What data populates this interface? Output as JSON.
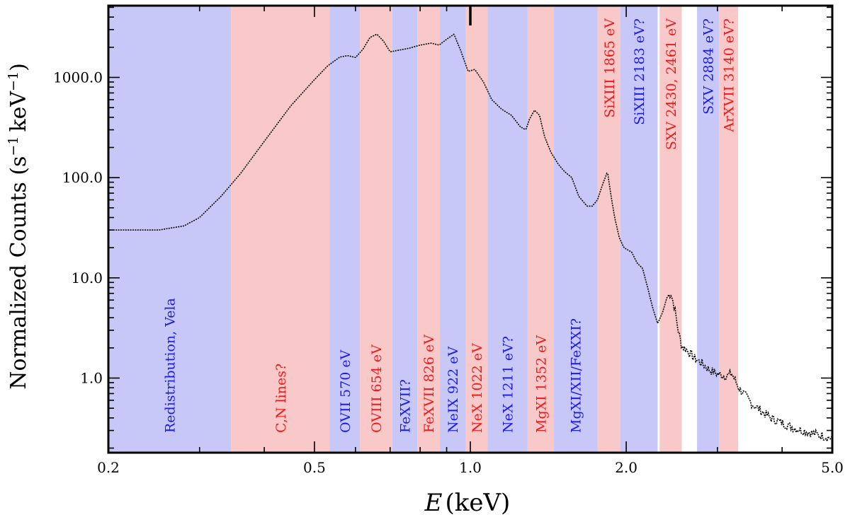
{
  "chart_data": {
    "type": "line",
    "title": "",
    "xlabel_var": "E",
    "xlabel_unit": "(keV)",
    "ylabel": "Normalized Counts (s",
    "ylabel_unit_mid": "keV",
    "ylabel_exp": "−1",
    "ylabel_close": ")",
    "xscale": "log",
    "yscale": "log",
    "xlim": [
      0.2,
      5.0
    ],
    "ylim": [
      0.18,
      5200
    ],
    "x_ticks": [
      {
        "value": 0.2,
        "label": "0.2"
      },
      {
        "value": 0.5,
        "label": "0.5"
      },
      {
        "value": 1.0,
        "label": "1.0"
      },
      {
        "value": 2.0,
        "label": "2.0"
      },
      {
        "value": 5.0,
        "label": "5.0"
      }
    ],
    "y_ticks": [
      {
        "value": 1,
        "label": "1.0"
      },
      {
        "value": 10,
        "label": "10.0"
      },
      {
        "value": 100,
        "label": "100.0"
      },
      {
        "value": 1000,
        "label": "1000.0"
      }
    ],
    "colors": {
      "blue_band": "#c8c8f8",
      "red_band": "#f9c8c8",
      "blue_text": "#1a1aee",
      "red_text": "#ee1a1a",
      "data": "#000000"
    },
    "bands": [
      {
        "x0": 0.2,
        "x1": 0.345,
        "color": "blue",
        "label": "Redistribution, Vela",
        "label_pos": "bottom"
      },
      {
        "x0": 0.345,
        "x1": 0.535,
        "color": "red",
        "label": "C,N lines?",
        "label_pos": "bottom"
      },
      {
        "x0": 0.535,
        "x1": 0.612,
        "color": "blue",
        "label": "OVII 570 eV",
        "label_pos": "bottom"
      },
      {
        "x0": 0.612,
        "x1": 0.707,
        "color": "red",
        "label": "OVIII 654 eV",
        "label_pos": "bottom"
      },
      {
        "x0": 0.707,
        "x1": 0.79,
        "color": "blue",
        "label": "FeXVII?",
        "label_pos": "bottom"
      },
      {
        "x0": 0.79,
        "x1": 0.873,
        "color": "red",
        "label": "FeXVII 826 eV",
        "label_pos": "bottom"
      },
      {
        "x0": 0.873,
        "x1": 0.98,
        "color": "blue",
        "label": "NeIX 922 eV",
        "label_pos": "bottom"
      },
      {
        "x0": 0.98,
        "x1": 1.08,
        "color": "red",
        "label": "NeX 1022 eV",
        "label_pos": "bottom"
      },
      {
        "x0": 1.08,
        "x1": 1.29,
        "color": "blue",
        "label": "NeX 1211 eV?",
        "label_pos": "bottom"
      },
      {
        "x0": 1.29,
        "x1": 1.45,
        "color": "red",
        "label": "MgXI 1352 eV",
        "label_pos": "bottom"
      },
      {
        "x0": 1.45,
        "x1": 1.76,
        "color": "blue",
        "label": "MgXI/XII/FeXXI?",
        "label_pos": "bottom"
      },
      {
        "x0": 1.76,
        "x1": 1.95,
        "color": "red",
        "label": "SiXIII 1865 eV",
        "label_pos": "top"
      },
      {
        "x0": 1.95,
        "x1": 2.3,
        "color": "blue",
        "label": "SiXIII 2183 eV?",
        "label_pos": "top"
      },
      {
        "x0": 2.32,
        "x1": 2.56,
        "color": "red",
        "label": "SXV 2430, 2461 eV",
        "label_pos": "top"
      },
      {
        "x0": 2.74,
        "x1": 3.02,
        "color": "blue",
        "label": "SXV 2884 eV?",
        "label_pos": "top"
      },
      {
        "x0": 3.02,
        "x1": 3.29,
        "color": "red",
        "label": "ArXVII 3140 eV?",
        "label_pos": "top"
      }
    ],
    "series": [
      {
        "name": "spectrum",
        "x": [
          0.2,
          0.25,
          0.28,
          0.3,
          0.33,
          0.36,
          0.4,
          0.45,
          0.5,
          0.53,
          0.56,
          0.58,
          0.6,
          0.62,
          0.64,
          0.66,
          0.68,
          0.7,
          0.72,
          0.76,
          0.8,
          0.84,
          0.87,
          0.9,
          0.93,
          0.96,
          0.99,
          1.02,
          1.06,
          1.1,
          1.15,
          1.2,
          1.25,
          1.28,
          1.3,
          1.33,
          1.36,
          1.39,
          1.43,
          1.48,
          1.52,
          1.57,
          1.62,
          1.68,
          1.72,
          1.76,
          1.8,
          1.84,
          1.87,
          1.9,
          1.94,
          1.98,
          2.05,
          2.1,
          2.15,
          2.2,
          2.25,
          2.3,
          2.35,
          2.4,
          2.44,
          2.48,
          2.52,
          2.56,
          2.62,
          2.7,
          2.8,
          2.9,
          3.0,
          3.1,
          3.2,
          3.3,
          3.5,
          3.8,
          4.2,
          4.6,
          5.0
        ],
        "y": [
          30,
          30,
          33,
          40,
          65,
          110,
          230,
          520,
          950,
          1300,
          1600,
          1650,
          1580,
          1900,
          2500,
          2700,
          2300,
          1800,
          1850,
          1950,
          2100,
          2200,
          2100,
          2400,
          2700,
          1800,
          1150,
          1200,
          900,
          600,
          480,
          420,
          320,
          300,
          380,
          470,
          420,
          260,
          180,
          135,
          115,
          100,
          65,
          52,
          52,
          60,
          85,
          115,
          65,
          40,
          25,
          20,
          18,
          14,
          12.5,
          8,
          5,
          3.5,
          4.5,
          6.5,
          7,
          5,
          3,
          2.1,
          1.9,
          1.6,
          1.4,
          1.2,
          1.1,
          1.05,
          1.1,
          0.8,
          0.55,
          0.4,
          0.32,
          0.28,
          0.25
        ]
      }
    ],
    "marker": {
      "x": 1.0,
      "y": 5200
    }
  }
}
